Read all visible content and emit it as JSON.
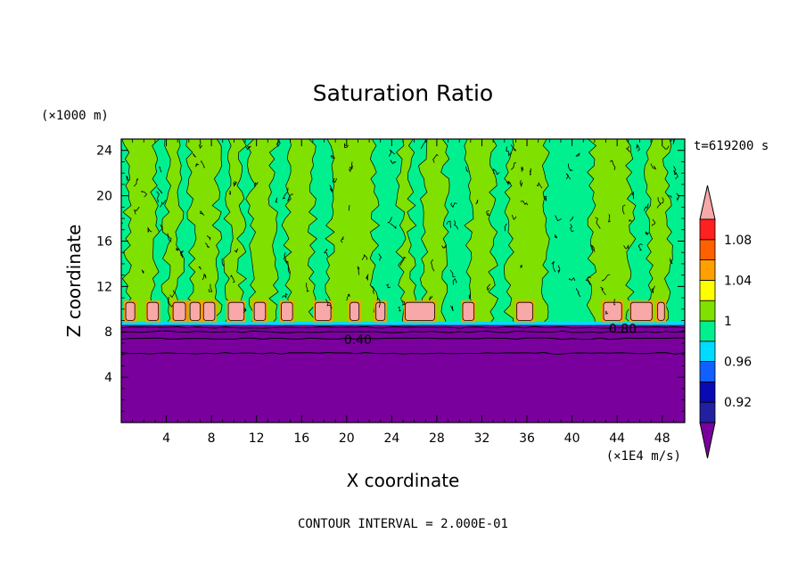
{
  "chart_data": {
    "type": "contour",
    "title": "Saturation Ratio",
    "xlabel": "X coordinate",
    "ylabel": "Z coordinate",
    "x_unit": "(×1E4 m/s)",
    "y_unit": "(×1000 m)",
    "time_label": "t=619200 s",
    "footer": "CONTOUR INTERVAL = 2.000E-01",
    "xlim": [
      0,
      50
    ],
    "ylim": [
      0,
      25
    ],
    "x_ticks": [
      "4",
      "8",
      "12",
      "16",
      "20",
      "24",
      "28",
      "32",
      "36",
      "40",
      "44",
      "48"
    ],
    "y_ticks": [
      "4",
      "8",
      "12",
      "16",
      "20",
      "24"
    ],
    "contour_labels": [
      {
        "text": "0.40",
        "x": 21,
        "y": 7.3
      },
      {
        "text": "0.80",
        "x": 44.5,
        "y": 8.3
      }
    ],
    "colorbar": {
      "labels": [
        "0.92",
        "0.96",
        "1",
        "1.04",
        "1.08"
      ],
      "levels": [
        0.9,
        0.92,
        0.94,
        0.96,
        0.98,
        1.0,
        1.02,
        1.04,
        1.06,
        1.08,
        1.1
      ],
      "colors": [
        "#7a009e",
        "#2020a0",
        "#0a0ab4",
        "#1060ff",
        "#00dcff",
        "#00f090",
        "#80e000",
        "#ffff00",
        "#ffa000",
        "#ff6000",
        "#ff2020",
        "#f8a8a8"
      ]
    },
    "layers": {
      "subsaturated_below_z": 8.6,
      "background_fill": "#00f090",
      "cloud_band_fill": "#f8a8a8",
      "dry_layer_fill": "#7a009e",
      "green_column_fill": "#80e000"
    },
    "green_columns_x": [
      [
        0.5,
        3
      ],
      [
        4,
        5.2
      ],
      [
        6.2,
        8.5
      ],
      [
        9.5,
        10.7
      ],
      [
        11.5,
        13.5
      ],
      [
        14.7,
        17
      ],
      [
        18.5,
        22.5
      ],
      [
        24.8,
        25.8
      ],
      [
        26.8,
        28.8
      ],
      [
        30.8,
        33
      ],
      [
        34.4,
        37.6
      ],
      [
        41.7,
        45.2
      ],
      [
        46.8,
        48.5
      ]
    ],
    "cloud_blocks": [
      {
        "x": [
          0.4,
          1.2
        ]
      },
      {
        "x": [
          2.3,
          3.3
        ]
      },
      {
        "x": [
          4.6,
          5.7
        ]
      },
      {
        "x": [
          6.1,
          7
        ]
      },
      {
        "x": [
          7.3,
          8.3
        ]
      },
      {
        "x": [
          9.5,
          10.9
        ]
      },
      {
        "x": [
          11.8,
          12.8
        ]
      },
      {
        "x": [
          14.2,
          15.2
        ]
      },
      {
        "x": [
          17.2,
          18.6
        ]
      },
      {
        "x": [
          20.3,
          21.1
        ]
      },
      {
        "x": [
          22.6,
          23.4
        ]
      },
      {
        "x": [
          25.2,
          27.8
        ]
      },
      {
        "x": [
          30.3,
          31.3
        ]
      },
      {
        "x": [
          35.1,
          36.5
        ]
      },
      {
        "x": [
          42.8,
          44.4
        ]
      },
      {
        "x": [
          45.2,
          47.1
        ]
      },
      {
        "x": [
          47.6,
          48.2
        ]
      }
    ]
  }
}
